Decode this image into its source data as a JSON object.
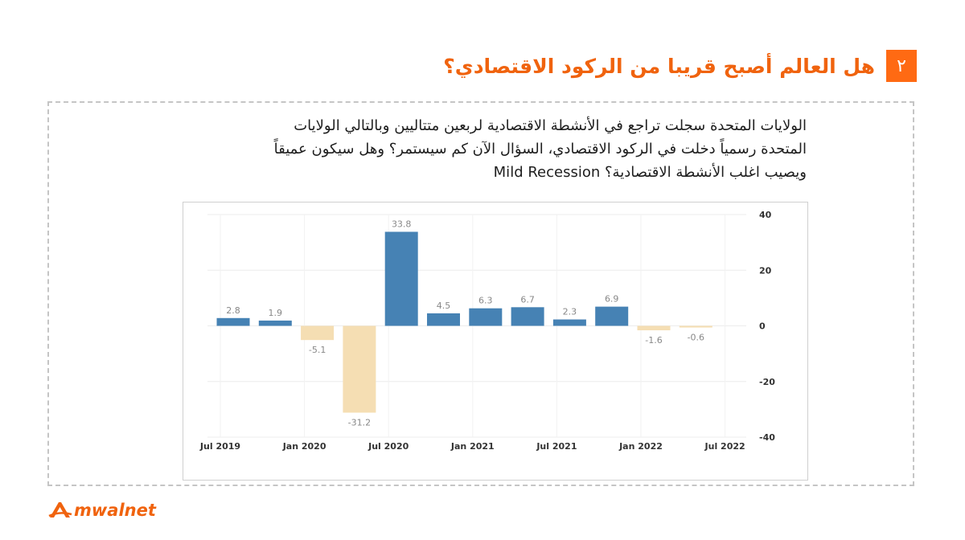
{
  "slide": {
    "number": "٢",
    "title": "هل العالم أصبح قريبا من الركود الاقتصادي؟",
    "body_lines": [
      "الولايات المتحدة سجلت تراجع في الأنشطة الاقتصادية لربعين متتاليين وبالتالي الولايات",
      "المتحدة رسمياً دخلت في الركود الاقتصادي، السؤال الآن كم سيستمر؟ وهل سيكون عميقاً",
      "ويصيب اغلب الأنشطة الاقتصادية؟ Mild Recession"
    ],
    "logo": "mwalnet",
    "colors": {
      "accent": "#ff6a13",
      "positive": "#4682b4",
      "negative": "#f5deb3"
    }
  },
  "chart_data": {
    "type": "bar",
    "x_tick_labels": [
      "Jul 2019",
      "Jan 2020",
      "Jul 2020",
      "Jan 2021",
      "Jul 2021",
      "Jan 2022",
      "Jul 2022"
    ],
    "values": [
      2.8,
      1.9,
      -5.1,
      -31.2,
      33.8,
      4.5,
      6.3,
      6.7,
      2.3,
      6.9,
      -1.6,
      -0.6
    ],
    "data_labels": [
      "2.8",
      "1.9",
      "-5.1",
      "-31.2",
      "33.8",
      "4.5",
      "6.3",
      "6.7",
      "2.3",
      "6.9",
      "-1.6",
      "-0.6"
    ],
    "ylim": [
      -40,
      40
    ],
    "y_ticks": [
      40,
      20,
      0,
      -20,
      -40
    ],
    "y_axis_side": "right",
    "grid": true
  }
}
